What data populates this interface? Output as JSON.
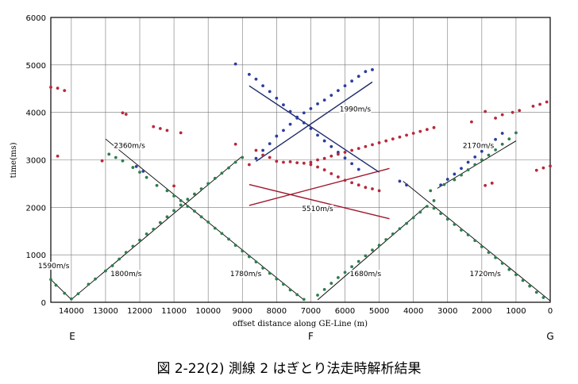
{
  "chart_data": {
    "type": "scatter",
    "xlabel": "offset distance along GE-Line (m)",
    "ylabel": "time(ms)",
    "xlim": [
      14600,
      0
    ],
    "ylim": [
      0,
      6000
    ],
    "x_ticks": [
      "14000",
      "13000",
      "12000",
      "11000",
      "10000",
      "9000",
      "8000",
      "7000",
      "6000",
      "5000",
      "4000",
      "3000",
      "2000",
      "1000",
      "0"
    ],
    "y_ticks": [
      "0",
      "1000",
      "2000",
      "3000",
      "4000",
      "5000",
      "6000"
    ],
    "end_labels": [
      {
        "text": "E",
        "x": 14000
      },
      {
        "text": "F",
        "x": 7000
      },
      {
        "text": "G",
        "x": 0
      }
    ],
    "caption": "図 2-22(2)  測線 2 はぎとり法走時解析結果",
    "colors": {
      "green": "#2e7d4f",
      "blue": "#2b3da0",
      "red": "#b8283a",
      "navy": "#1b2a6b",
      "darkred": "#a0182d",
      "line": "#000000",
      "grid": "#777777"
    },
    "velocity_labels": [
      {
        "text": "1590m/s",
        "x": 14600,
        "y": 720
      },
      {
        "text": "1800m/s",
        "x": 12400,
        "y": 550
      },
      {
        "text": "1780m/s",
        "x": 8900,
        "y": 550
      },
      {
        "text": "1680m/s",
        "x": 5400,
        "y": 550
      },
      {
        "text": "1720m/s",
        "x": 1900,
        "y": 550
      },
      {
        "text": "2360m/s",
        "x": 12300,
        "y": 3250
      },
      {
        "text": "2170m/s",
        "x": 2100,
        "y": 3250
      },
      {
        "text": "1990m/s",
        "x": 5700,
        "y": 4020
      },
      {
        "text": "5510m/s",
        "x": 6800,
        "y": 1920
      }
    ],
    "series": [
      {
        "name": "",
        "color": "green",
        "points": [
          [
            14600,
            480
          ],
          [
            14450,
            360
          ],
          [
            14200,
            190
          ],
          [
            14000,
            70
          ],
          [
            13800,
            180
          ],
          [
            13500,
            380
          ],
          [
            13300,
            490
          ],
          [
            13000,
            660
          ],
          [
            12800,
            770
          ],
          [
            12600,
            910
          ],
          [
            12400,
            1050
          ],
          [
            12200,
            1180
          ],
          [
            12000,
            1310
          ],
          [
            11800,
            1440
          ],
          [
            11600,
            1540
          ],
          [
            11400,
            1680
          ],
          [
            11200,
            1800
          ],
          [
            11000,
            1930
          ],
          [
            10800,
            2050
          ],
          [
            10600,
            2170
          ],
          [
            10400,
            2280
          ],
          [
            10200,
            2390
          ],
          [
            10000,
            2500
          ],
          [
            9800,
            2610
          ],
          [
            9600,
            2720
          ],
          [
            9400,
            2830
          ],
          [
            9200,
            2950
          ],
          [
            9000,
            3050
          ],
          [
            12900,
            3120
          ],
          [
            12700,
            3050
          ],
          [
            12500,
            2980
          ],
          [
            12200,
            2840
          ],
          [
            12000,
            2740
          ],
          [
            11800,
            2630
          ],
          [
            11500,
            2460
          ],
          [
            11200,
            2350
          ],
          [
            11000,
            2240
          ],
          [
            10800,
            2140
          ],
          [
            10600,
            2020
          ],
          [
            10400,
            1920
          ],
          [
            10200,
            1800
          ],
          [
            10000,
            1690
          ],
          [
            9800,
            1560
          ],
          [
            9600,
            1450
          ],
          [
            9400,
            1330
          ],
          [
            9200,
            1200
          ],
          [
            9000,
            1080
          ],
          [
            8800,
            960
          ],
          [
            8600,
            850
          ],
          [
            8400,
            720
          ],
          [
            8200,
            610
          ],
          [
            8000,
            490
          ],
          [
            7800,
            380
          ],
          [
            7600,
            260
          ],
          [
            7400,
            160
          ],
          [
            7200,
            60
          ],
          [
            6800,
            150
          ],
          [
            6600,
            270
          ],
          [
            6400,
            400
          ],
          [
            6200,
            520
          ],
          [
            6000,
            630
          ],
          [
            5800,
            750
          ],
          [
            5600,
            860
          ],
          [
            5400,
            980
          ],
          [
            5200,
            1100
          ],
          [
            5000,
            1200
          ],
          [
            4800,
            1320
          ],
          [
            4600,
            1440
          ],
          [
            4400,
            1550
          ],
          [
            4200,
            1660
          ],
          [
            4000,
            1780
          ],
          [
            3800,
            1900
          ],
          [
            3600,
            2020
          ],
          [
            3400,
            2140
          ],
          [
            3400,
            1980
          ],
          [
            3200,
            1870
          ],
          [
            3000,
            1750
          ],
          [
            2800,
            1640
          ],
          [
            2600,
            1520
          ],
          [
            2400,
            1420
          ],
          [
            2200,
            1300
          ],
          [
            2000,
            1170
          ],
          [
            1800,
            1050
          ],
          [
            1600,
            940
          ],
          [
            1400,
            820
          ],
          [
            1200,
            690
          ],
          [
            1000,
            580
          ],
          [
            800,
            460
          ],
          [
            600,
            340
          ],
          [
            400,
            210
          ],
          [
            200,
            100
          ],
          [
            3500,
            2350
          ],
          [
            3100,
            2480
          ],
          [
            2800,
            2580
          ],
          [
            2600,
            2680
          ],
          [
            2400,
            2790
          ],
          [
            2200,
            2900
          ],
          [
            2000,
            3000
          ],
          [
            1800,
            3100
          ],
          [
            1600,
            3210
          ],
          [
            1400,
            3330
          ],
          [
            1200,
            3440
          ],
          [
            1000,
            3570
          ]
        ]
      },
      {
        "name": "",
        "color": "blue",
        "points": [
          [
            9200,
            5020
          ],
          [
            8800,
            4800
          ],
          [
            8600,
            4700
          ],
          [
            8400,
            4560
          ],
          [
            8200,
            4440
          ],
          [
            8000,
            4300
          ],
          [
            7800,
            4160
          ],
          [
            7600,
            4020
          ],
          [
            7400,
            3900
          ],
          [
            7200,
            3780
          ],
          [
            7000,
            3660
          ],
          [
            6800,
            3520
          ],
          [
            6600,
            3400
          ],
          [
            6400,
            3280
          ],
          [
            6200,
            3160
          ],
          [
            6000,
            3040
          ],
          [
            5800,
            2920
          ],
          [
            5600,
            2800
          ],
          [
            8600,
            3030
          ],
          [
            8400,
            3200
          ],
          [
            8200,
            3340
          ],
          [
            8000,
            3500
          ],
          [
            7800,
            3620
          ],
          [
            7600,
            3750
          ],
          [
            7400,
            3880
          ],
          [
            7200,
            3990
          ],
          [
            7000,
            4080
          ],
          [
            6800,
            4180
          ],
          [
            6600,
            4260
          ],
          [
            6400,
            4360
          ],
          [
            6200,
            4460
          ],
          [
            6000,
            4560
          ],
          [
            5800,
            4660
          ],
          [
            5600,
            4760
          ],
          [
            5400,
            4860
          ],
          [
            5200,
            4900
          ],
          [
            4400,
            2550
          ],
          [
            4200,
            2470
          ],
          [
            3200,
            2470
          ],
          [
            3000,
            2590
          ],
          [
            2800,
            2700
          ],
          [
            2600,
            2820
          ],
          [
            2400,
            2950
          ],
          [
            2200,
            3060
          ],
          [
            2000,
            3180
          ],
          [
            1800,
            3300
          ],
          [
            1600,
            3430
          ],
          [
            1400,
            3560
          ],
          [
            12100,
            2860
          ],
          [
            11900,
            2760
          ]
        ]
      },
      {
        "name": "",
        "color": "red",
        "points": [
          [
            14600,
            4530
          ],
          [
            14400,
            4510
          ],
          [
            14200,
            4460
          ],
          [
            14400,
            3080
          ],
          [
            13100,
            2980
          ],
          [
            12500,
            3990
          ],
          [
            12400,
            3960
          ],
          [
            11600,
            3700
          ],
          [
            11400,
            3660
          ],
          [
            11200,
            3620
          ],
          [
            10800,
            3570
          ],
          [
            11000,
            2450
          ],
          [
            9200,
            3330
          ],
          [
            8600,
            3200
          ],
          [
            8400,
            3100
          ],
          [
            8800,
            2900
          ],
          [
            8200,
            3050
          ],
          [
            8000,
            2970
          ],
          [
            7800,
            2950
          ],
          [
            7600,
            2960
          ],
          [
            7400,
            2940
          ],
          [
            7200,
            2930
          ],
          [
            7000,
            2900
          ],
          [
            6800,
            2850
          ],
          [
            6600,
            2790
          ],
          [
            6400,
            2710
          ],
          [
            6200,
            2640
          ],
          [
            6000,
            2570
          ],
          [
            5800,
            2520
          ],
          [
            5600,
            2470
          ],
          [
            5400,
            2420
          ],
          [
            5200,
            2390
          ],
          [
            5000,
            2350
          ],
          [
            7000,
            2950
          ],
          [
            6800,
            3000
          ],
          [
            6600,
            3030
          ],
          [
            6400,
            3080
          ],
          [
            6200,
            3120
          ],
          [
            6000,
            3160
          ],
          [
            5800,
            3200
          ],
          [
            5600,
            3240
          ],
          [
            5400,
            3280
          ],
          [
            5200,
            3320
          ],
          [
            5000,
            3360
          ],
          [
            4800,
            3400
          ],
          [
            4600,
            3440
          ],
          [
            4400,
            3480
          ],
          [
            4200,
            3520
          ],
          [
            4000,
            3560
          ],
          [
            3800,
            3600
          ],
          [
            3600,
            3640
          ],
          [
            3400,
            3680
          ],
          [
            2300,
            3800
          ],
          [
            1900,
            4020
          ],
          [
            1600,
            3880
          ],
          [
            1400,
            3950
          ],
          [
            1100,
            4000
          ],
          [
            900,
            4040
          ],
          [
            500,
            4130
          ],
          [
            300,
            4170
          ],
          [
            100,
            4220
          ],
          [
            400,
            2780
          ],
          [
            200,
            2830
          ],
          [
            0,
            2870
          ],
          [
            1900,
            2460
          ],
          [
            1700,
            2510
          ]
        ]
      }
    ],
    "lines": [
      {
        "color": "line",
        "from": [
          14600,
          480
        ],
        "to": [
          14000,
          60
        ]
      },
      {
        "color": "line",
        "from": [
          14000,
          60
        ],
        "to": [
          9000,
          3080
        ]
      },
      {
        "color": "line",
        "from": [
          13000,
          3440
        ],
        "to": [
          7200,
          50
        ]
      },
      {
        "color": "line",
        "from": [
          6800,
          50
        ],
        "to": [
          3600,
          2040
        ]
      },
      {
        "color": "line",
        "from": [
          4300,
          2550
        ],
        "to": [
          0,
          30
        ]
      },
      {
        "color": "line",
        "from": [
          3300,
          2400
        ],
        "to": [
          1000,
          3400
        ]
      },
      {
        "color": "navy",
        "from": [
          8800,
          4560
        ],
        "to": [
          5000,
          2740
        ]
      },
      {
        "color": "navy",
        "from": [
          8600,
          2970
        ],
        "to": [
          5200,
          4640
        ]
      },
      {
        "color": "darkred",
        "from": [
          8800,
          2040
        ],
        "to": [
          4700,
          2820
        ]
      },
      {
        "color": "darkred",
        "from": [
          8800,
          2480
        ],
        "to": [
          4700,
          1760
        ]
      }
    ]
  }
}
